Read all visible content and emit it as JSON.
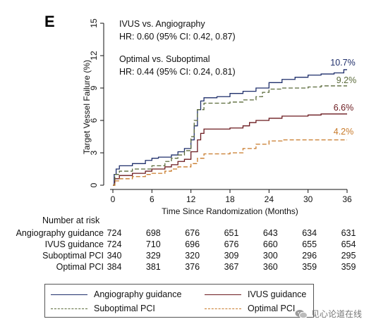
{
  "panel_label": "E",
  "annotations": {
    "ivus_vs_angio_title": "IVUS vs. Angiography",
    "ivus_vs_angio_hr": "HR: 0.60 (95% CI: 0.42, 0.87)",
    "opt_vs_subopt_title": "Optimal vs. Suboptimal",
    "opt_vs_subopt_hr": "HR: 0.44 (95% CI: 0.24, 0.81)"
  },
  "chart_data": {
    "type": "line",
    "xlabel": "Time Since Randomization (Months)",
    "ylabel": "Target Vessel Failure (%)",
    "xlim": [
      0,
      36
    ],
    "ylim": [
      0,
      15
    ],
    "xticks": [
      0,
      6,
      12,
      18,
      24,
      30,
      36
    ],
    "yticks": [
      0,
      3,
      6,
      9,
      12,
      15
    ],
    "grid": false,
    "legend": "bottom",
    "series": [
      {
        "name": "Angiography guidance",
        "color": "#1f2f6b",
        "dash": "solid",
        "end_label": "10.7%",
        "points": [
          [
            0,
            0
          ],
          [
            0.2,
            1.0
          ],
          [
            0.5,
            1.5
          ],
          [
            1,
            1.8
          ],
          [
            3,
            2.0
          ],
          [
            5,
            2.3
          ],
          [
            6,
            2.5
          ],
          [
            7,
            2.6
          ],
          [
            9,
            2.8
          ],
          [
            10,
            3.1
          ],
          [
            11,
            3.4
          ],
          [
            12,
            4.2
          ],
          [
            12.5,
            5.5
          ],
          [
            13,
            7.0
          ],
          [
            13.5,
            7.8
          ],
          [
            14,
            8.1
          ],
          [
            16,
            8.2
          ],
          [
            18,
            8.5
          ],
          [
            20,
            8.7
          ],
          [
            22,
            9.0
          ],
          [
            24,
            9.5
          ],
          [
            26,
            9.8
          ],
          [
            28,
            10.0
          ],
          [
            30,
            10.2
          ],
          [
            32,
            10.3
          ],
          [
            34,
            10.4
          ],
          [
            35.5,
            10.7
          ]
        ]
      },
      {
        "name": "IVUS guidance",
        "color": "#6b1a1f",
        "dash": "solid",
        "end_label": "6.6%",
        "points": [
          [
            0,
            0
          ],
          [
            0.3,
            0.6
          ],
          [
            1,
            0.9
          ],
          [
            3,
            1.1
          ],
          [
            5,
            1.3
          ],
          [
            6,
            1.5
          ],
          [
            8,
            1.7
          ],
          [
            9,
            1.9
          ],
          [
            10,
            2.2
          ],
          [
            11,
            2.4
          ],
          [
            12,
            3.1
          ],
          [
            13,
            4.2
          ],
          [
            13.5,
            4.8
          ],
          [
            14,
            5.2
          ],
          [
            18,
            5.3
          ],
          [
            20,
            5.5
          ],
          [
            21,
            5.8
          ],
          [
            22,
            6.0
          ],
          [
            24,
            6.2
          ],
          [
            26,
            6.4
          ],
          [
            30,
            6.5
          ],
          [
            32,
            6.6
          ],
          [
            36,
            6.6
          ]
        ]
      },
      {
        "name": "Suboptimal PCI",
        "color": "#5a6a3a",
        "dash": "dashed",
        "end_label": "9.2%",
        "points": [
          [
            0,
            0
          ],
          [
            0.3,
            1.0
          ],
          [
            1,
            1.3
          ],
          [
            3,
            1.5
          ],
          [
            6,
            1.8
          ],
          [
            8,
            2.2
          ],
          [
            9,
            2.5
          ],
          [
            10,
            2.8
          ],
          [
            11,
            3.2
          ],
          [
            12,
            4.5
          ],
          [
            12.5,
            6.0
          ],
          [
            13,
            7.0
          ],
          [
            14,
            7.6
          ],
          [
            18,
            7.7
          ],
          [
            20,
            7.9
          ],
          [
            22,
            8.2
          ],
          [
            23,
            8.6
          ],
          [
            24,
            8.9
          ],
          [
            26,
            9.0
          ],
          [
            30,
            9.1
          ],
          [
            32,
            9.2
          ],
          [
            36,
            9.2
          ]
        ]
      },
      {
        "name": "Optimal PCI",
        "color": "#c87a2a",
        "dash": "dashed",
        "end_label": "4.2%",
        "points": [
          [
            0,
            0
          ],
          [
            0.3,
            0.4
          ],
          [
            1,
            0.6
          ],
          [
            3,
            0.8
          ],
          [
            5,
            1.0
          ],
          [
            6,
            1.1
          ],
          [
            8,
            1.3
          ],
          [
            9,
            1.5
          ],
          [
            10,
            1.7
          ],
          [
            12,
            2.0
          ],
          [
            13,
            2.5
          ],
          [
            14,
            2.9
          ],
          [
            18,
            3.0
          ],
          [
            20,
            3.4
          ],
          [
            22,
            3.8
          ],
          [
            24,
            4.1
          ],
          [
            26,
            4.2
          ],
          [
            36,
            4.2
          ]
        ]
      }
    ]
  },
  "risk_table": {
    "title": "Number at risk",
    "timepoints": [
      0,
      6,
      12,
      18,
      24,
      30,
      36
    ],
    "rows": [
      {
        "label": "Angiography guidance",
        "values": [
          "724",
          "698",
          "676",
          "651",
          "643",
          "634",
          "631"
        ]
      },
      {
        "label": "IVUS guidance",
        "values": [
          "724",
          "710",
          "696",
          "676",
          "660",
          "655",
          "654"
        ]
      },
      {
        "label": "Suboptimal PCI",
        "values": [
          "340",
          "329",
          "320",
          "309",
          "300",
          "296",
          "295"
        ]
      },
      {
        "label": "Optimal PCI",
        "values": [
          "384",
          "381",
          "376",
          "367",
          "360",
          "359",
          "359"
        ]
      }
    ]
  },
  "legend": {
    "items": [
      {
        "label": "Angiography guidance",
        "color": "#1f2f6b",
        "dash": "solid"
      },
      {
        "label": "IVUS guidance",
        "color": "#6b1a1f",
        "dash": "solid"
      },
      {
        "label": "Suboptimal PCI",
        "color": "#5a6a3a",
        "dash": "dashed"
      },
      {
        "label": "Optimal PCI",
        "color": "#c87a2a",
        "dash": "dashed"
      }
    ]
  },
  "watermark": {
    "icon": "wechat-icon",
    "text": "见心论道在线"
  }
}
